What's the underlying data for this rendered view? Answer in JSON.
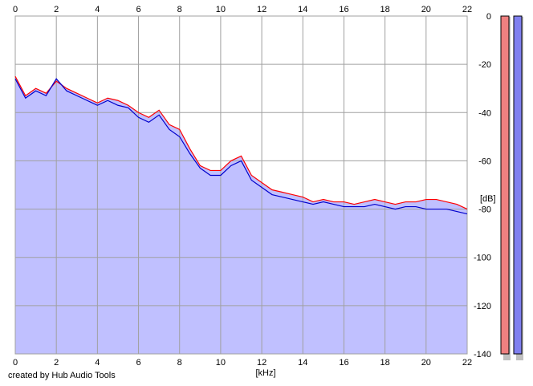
{
  "credit": "created by Hub Audio Tools",
  "chart_data": {
    "type": "area",
    "xlabel": "[kHz]",
    "ylabel": "[dB]",
    "xlim": [
      0,
      22
    ],
    "ylim": [
      -140,
      0
    ],
    "x_ticks": [
      0,
      2,
      4,
      6,
      8,
      10,
      12,
      14,
      16,
      18,
      20,
      22
    ],
    "y_ticks": [
      0,
      -20,
      -40,
      -60,
      -80,
      -100,
      -120,
      -140
    ],
    "y_tick_labels": [
      "0",
      "-20",
      "-40",
      "-60",
      "-80",
      "-100",
      "-120",
      "-140"
    ],
    "grid": true,
    "x": [
      0,
      0.5,
      1,
      1.5,
      2,
      2.5,
      3,
      3.5,
      4,
      4.5,
      5,
      5.5,
      6,
      6.5,
      7,
      7.5,
      8,
      8.5,
      9,
      9.5,
      10,
      10.5,
      11,
      11.5,
      12,
      12.5,
      13,
      13.5,
      14,
      14.5,
      15,
      15.5,
      16,
      16.5,
      17,
      17.5,
      18,
      18.5,
      19,
      19.5,
      20,
      20.5,
      21,
      21.5,
      22
    ],
    "series": [
      {
        "color": "#ff0000",
        "values": [
          -25,
          -33,
          -30,
          -32,
          -27,
          -30,
          -32,
          -34,
          -36,
          -34,
          -35,
          -37,
          -40,
          -42,
          -39,
          -45,
          -47,
          -55,
          -62,
          -64,
          -64,
          -60,
          -58,
          -66,
          -69,
          -72,
          -73,
          -74,
          -75,
          -77,
          -76,
          -77,
          -77,
          -78,
          -77,
          -76,
          -77,
          -78,
          -77,
          -77,
          -76,
          -76,
          -77,
          -78,
          -80
        ]
      },
      {
        "color": "#0000cc",
        "values": [
          -26,
          -34,
          -31,
          -33,
          -26,
          -31,
          -33,
          -35,
          -37,
          -35,
          -37,
          -38,
          -42,
          -44,
          -41,
          -47,
          -50,
          -57,
          -63,
          -66,
          -66,
          -62,
          -60,
          -68,
          -71,
          -74,
          -75,
          -76,
          -77,
          -78,
          -77,
          -78,
          -79,
          -79,
          -79,
          -78,
          -79,
          -80,
          -79,
          -79,
          -80,
          -80,
          -80,
          -81,
          -82
        ]
      }
    ],
    "level_meters": [
      {
        "color": "#f08080",
        "level_db": 0
      },
      {
        "color": "#8080f0",
        "level_db": 0
      }
    ],
    "fill_color": "#c0c0ff"
  }
}
